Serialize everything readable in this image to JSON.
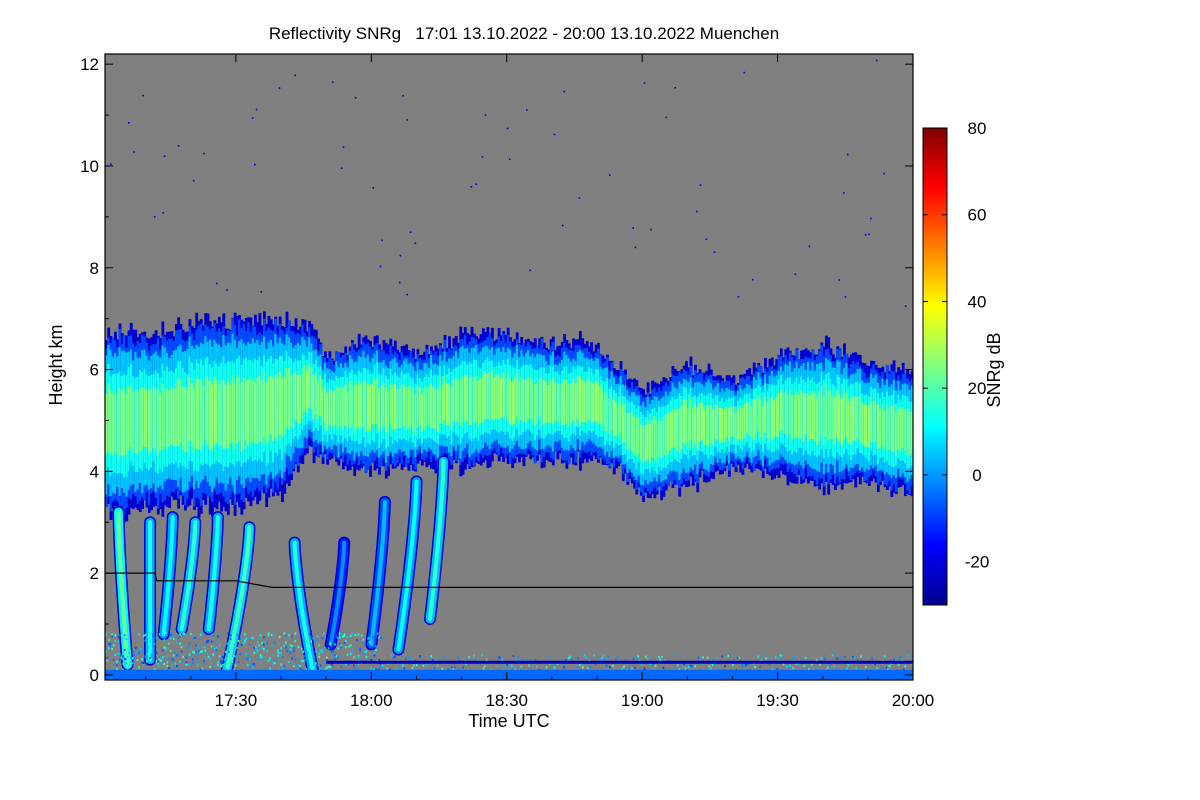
{
  "chart_data": {
    "type": "heatmap",
    "title": "Reflectivity SNRg   17:01 13.10.2022 - 20:00 13.10.2022 Muenchen",
    "xlabel": "Time UTC",
    "ylabel": "Height km",
    "x_range_minutes_utc": [
      1021,
      1200
    ],
    "x_ticks": [
      {
        "value": 1050,
        "label": "17:30"
      },
      {
        "value": 1080,
        "label": "18:00"
      },
      {
        "value": 1110,
        "label": "18:30"
      },
      {
        "value": 1140,
        "label": "19:00"
      },
      {
        "value": 1170,
        "label": "19:30"
      },
      {
        "value": 1200,
        "label": "20:00"
      }
    ],
    "y_range": [
      -0.1,
      12.2
    ],
    "y_ticks": [
      {
        "value": 0,
        "label": "0"
      },
      {
        "value": 2,
        "label": "2"
      },
      {
        "value": 4,
        "label": "4"
      },
      {
        "value": 6,
        "label": "6"
      },
      {
        "value": 8,
        "label": "8"
      },
      {
        "value": 10,
        "label": "10"
      },
      {
        "value": 12,
        "label": "12"
      }
    ],
    "colorbar": {
      "label": "SNRg dB",
      "range": [
        -30,
        80
      ],
      "ticks": [
        {
          "value": -20,
          "label": "-20"
        },
        {
          "value": 0,
          "label": "0"
        },
        {
          "value": 20,
          "label": "20"
        },
        {
          "value": 40,
          "label": "40"
        },
        {
          "value": 60,
          "label": "60"
        },
        {
          "value": 80,
          "label": "80"
        }
      ],
      "colormap": [
        "#00008f",
        "#0000ff",
        "#0080ff",
        "#00ffff",
        "#80ff80",
        "#ffff00",
        "#ff8000",
        "#ff0000",
        "#800000"
      ]
    },
    "background_color": "#808080",
    "cloud_layer": {
      "time": [
        1021,
        1030,
        1040,
        1050,
        1060,
        1066,
        1070,
        1080,
        1090,
        1100,
        1110,
        1120,
        1128,
        1135,
        1140,
        1150,
        1160,
        1170,
        1180,
        1190,
        1200
      ],
      "top_km": [
        6.8,
        6.7,
        6.9,
        7.0,
        7.0,
        6.8,
        6.3,
        6.6,
        6.3,
        6.7,
        6.7,
        6.5,
        6.6,
        6.0,
        5.6,
        6.1,
        5.7,
        6.3,
        6.5,
        6.1,
        5.9
      ],
      "base_km": [
        3.1,
        3.3,
        3.3,
        3.3,
        3.6,
        4.4,
        4.2,
        4.0,
        4.1,
        4.1,
        4.2,
        4.2,
        4.2,
        4.0,
        3.5,
        3.7,
        4.1,
        3.9,
        3.7,
        3.8,
        3.5
      ],
      "core_snr_db": 25
    },
    "fall_streaks": [
      {
        "t_top": 1024,
        "h_top": 3.2,
        "t_bottom": 1026,
        "h_bottom": 0.2,
        "snr_db": 18
      },
      {
        "t_top": 1031,
        "h_top": 3.0,
        "t_bottom": 1031,
        "h_bottom": 0.3,
        "snr_db": 10
      },
      {
        "t_top": 1036,
        "h_top": 3.1,
        "t_bottom": 1034,
        "h_bottom": 0.8,
        "snr_db": 8
      },
      {
        "t_top": 1041,
        "h_top": 3.0,
        "t_bottom": 1038,
        "h_bottom": 0.9,
        "snr_db": 12
      },
      {
        "t_top": 1046,
        "h_top": 3.1,
        "t_bottom": 1044,
        "h_bottom": 0.9,
        "snr_db": 10
      },
      {
        "t_top": 1053,
        "h_top": 2.9,
        "t_bottom": 1048,
        "h_bottom": 0.1,
        "snr_db": 14
      },
      {
        "t_top": 1063,
        "h_top": 2.6,
        "t_bottom": 1067,
        "h_bottom": 0.1,
        "snr_db": 10
      },
      {
        "t_top": 1074,
        "h_top": 2.6,
        "t_bottom": 1071,
        "h_bottom": 0.6,
        "snr_db": -5
      },
      {
        "t_top": 1083,
        "h_top": 3.4,
        "t_bottom": 1080,
        "h_bottom": 0.6,
        "snr_db": 0
      },
      {
        "t_top": 1090,
        "h_top": 3.8,
        "t_bottom": 1086,
        "h_bottom": 0.5,
        "snr_db": 8
      },
      {
        "t_top": 1096,
        "h_top": 4.2,
        "t_bottom": 1093,
        "h_bottom": 1.1,
        "snr_db": 12
      }
    ],
    "boundary_layer_height": {
      "time": [
        1021,
        1032,
        1032.5,
        1050,
        1058,
        1200
      ],
      "height_km": [
        2.0,
        2.0,
        1.85,
        1.85,
        1.72,
        1.72
      ]
    },
    "surface_clutter": {
      "h_max_km": 0.8,
      "snr_db": 5
    },
    "noise_line_km": 0.25
  }
}
